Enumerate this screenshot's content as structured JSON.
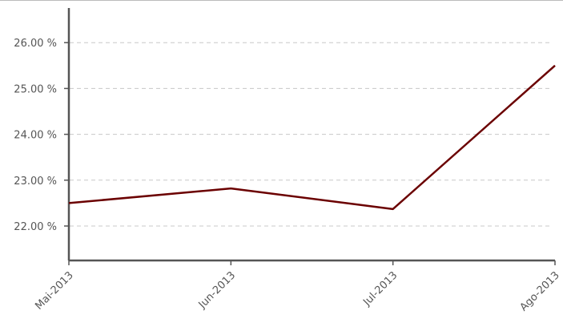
{
  "chart_data": {
    "type": "line",
    "categories": [
      "Mai-2013",
      "Jun-2013",
      "Jul-2013",
      "Ago-2013"
    ],
    "series": [
      {
        "values": [
          22.5,
          22.82,
          22.37,
          25.5
        ]
      }
    ],
    "y_ticks": [
      22.0,
      23.0,
      24.0,
      25.0,
      26.0
    ],
    "y_tick_labels": [
      "22.00 %",
      "23.00 %",
      "24.00 %",
      "25.00 %",
      "26.00 %"
    ],
    "ylim": [
      21.25,
      26.75
    ],
    "grid": true,
    "colors": {
      "line": "#6b0000",
      "grid": "#c8c8c8",
      "axis": "#555555"
    }
  }
}
